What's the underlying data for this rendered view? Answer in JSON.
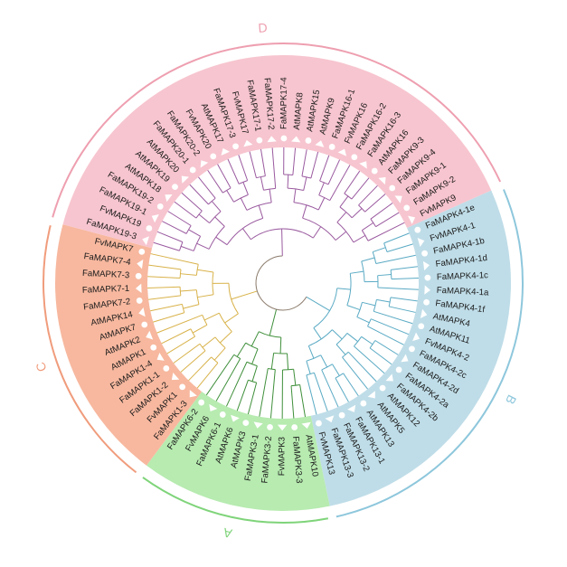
{
  "groups": [
    {
      "key": "A",
      "label": "A",
      "fill": "#b7ebb0",
      "arc": "#7fd47a",
      "branch": "#3f8f3a"
    },
    {
      "key": "B",
      "label": "B",
      "fill": "#bfdde8",
      "arc": "#8ec7dc",
      "branch": "#5aaac4"
    },
    {
      "key": "C",
      "label": "C",
      "fill": "#f7b89f",
      "arc": "#f09c7c",
      "branch": "#d8b24a"
    },
    {
      "key": "D",
      "label": "D",
      "fill": "#f7c5cf",
      "arc": "#ee9fb0",
      "branch": "#9a5a9f"
    }
  ],
  "leaves": [
    {
      "label": "FaMAPK4-1e",
      "group": "B"
    },
    {
      "label": "FvMAPK4-1",
      "group": "B"
    },
    {
      "label": "FaMAPK4-1b",
      "group": "B"
    },
    {
      "label": "FaMAPK4-1d",
      "group": "B"
    },
    {
      "label": "FaMAPK4-1c",
      "group": "B"
    },
    {
      "label": "FaMAPK4-1a",
      "group": "B"
    },
    {
      "label": "FaMAPK4-1f",
      "group": "B"
    },
    {
      "label": "AtMAPK4",
      "group": "B"
    },
    {
      "label": "AtMAPK11",
      "group": "B"
    },
    {
      "label": "FvMAPK4-2",
      "group": "B"
    },
    {
      "label": "FaMAPK4-2c",
      "group": "B"
    },
    {
      "label": "FaMAPK4-2d",
      "group": "B"
    },
    {
      "label": "FaMAPK4-2a",
      "group": "B"
    },
    {
      "label": "FaMAPK4-2b",
      "group": "B"
    },
    {
      "label": "AtMAPK12",
      "group": "B"
    },
    {
      "label": "AtMAPK5",
      "group": "B"
    },
    {
      "label": "AtMAPK13",
      "group": "B"
    },
    {
      "label": "FaMAPK13-1",
      "group": "B"
    },
    {
      "label": "FaMAPK13-2",
      "group": "B"
    },
    {
      "label": "FaMAPK13-3",
      "group": "B"
    },
    {
      "label": "FvMAPK13",
      "group": "B"
    },
    {
      "label": "AtMAPK10",
      "group": "A"
    },
    {
      "label": "FaMAPK3-3",
      "group": "A"
    },
    {
      "label": "FvMAPK3",
      "group": "A"
    },
    {
      "label": "FaMAPK3-2",
      "group": "A"
    },
    {
      "label": "FaMAPK3-1",
      "group": "A"
    },
    {
      "label": "AtMAPK3",
      "group": "A"
    },
    {
      "label": "AtMAPK6",
      "group": "A"
    },
    {
      "label": "FaMAPK6-1",
      "group": "A"
    },
    {
      "label": "FvMAPK6",
      "group": "A"
    },
    {
      "label": "FaMAPK6-2",
      "group": "A"
    },
    {
      "label": "FaMAPK1-3",
      "group": "C"
    },
    {
      "label": "FvMAPK1",
      "group": "C"
    },
    {
      "label": "FaMAPK1-2",
      "group": "C"
    },
    {
      "label": "FaMAPK1-1",
      "group": "C"
    },
    {
      "label": "FaMAPK1-4",
      "group": "C"
    },
    {
      "label": "AtMAPK1",
      "group": "C"
    },
    {
      "label": "AtMAPK2",
      "group": "C"
    },
    {
      "label": "AtMAPK7",
      "group": "C"
    },
    {
      "label": "AtMAPK14",
      "group": "C"
    },
    {
      "label": "FaMAPK7-2",
      "group": "C"
    },
    {
      "label": "FaMAPK7-1",
      "group": "C"
    },
    {
      "label": "FaMAPK7-3",
      "group": "C"
    },
    {
      "label": "FaMAPK7-4",
      "group": "C"
    },
    {
      "label": "FvMAPK7",
      "group": "C"
    },
    {
      "label": "FaMAPK19-3",
      "group": "D"
    },
    {
      "label": "FvMAPK19",
      "group": "D"
    },
    {
      "label": "FaMAPK19-1",
      "group": "D"
    },
    {
      "label": "FaMAPK19-2",
      "group": "D"
    },
    {
      "label": "AtMAPK18",
      "group": "D"
    },
    {
      "label": "AtMAPK19",
      "group": "D"
    },
    {
      "label": "AtMAPK20",
      "group": "D"
    },
    {
      "label": "FaMAPK20-1",
      "group": "D"
    },
    {
      "label": "FaMAPK20-2",
      "group": "D"
    },
    {
      "label": "FvMAPK20",
      "group": "D"
    },
    {
      "label": "AtMAPK17",
      "group": "D"
    },
    {
      "label": "FaMAPK17-3",
      "group": "D"
    },
    {
      "label": "FvMAPK17",
      "group": "D"
    },
    {
      "label": "FaMAPK17-1",
      "group": "D"
    },
    {
      "label": "FaMAPK17-2",
      "group": "D"
    },
    {
      "label": "FaMAPK17-4",
      "group": "D"
    },
    {
      "label": "AtMAPK8",
      "group": "D"
    },
    {
      "label": "AtMAPK15",
      "group": "D"
    },
    {
      "label": "AtMAPK9",
      "group": "D"
    },
    {
      "label": "FaMAPK16-1",
      "group": "D"
    },
    {
      "label": "FvMAPK16",
      "group": "D"
    },
    {
      "label": "FaMAPK16-2",
      "group": "D"
    },
    {
      "label": "FaMAPK16-3",
      "group": "D"
    },
    {
      "label": "AtMAPK16",
      "group": "D"
    },
    {
      "label": "FaMAPK9-3",
      "group": "D"
    },
    {
      "label": "FaMAPK9-4",
      "group": "D"
    },
    {
      "label": "FaMAPK9-1",
      "group": "D"
    },
    {
      "label": "FaMAPK9-2",
      "group": "D"
    },
    {
      "label": "FvMAPK9",
      "group": "D"
    }
  ]
}
